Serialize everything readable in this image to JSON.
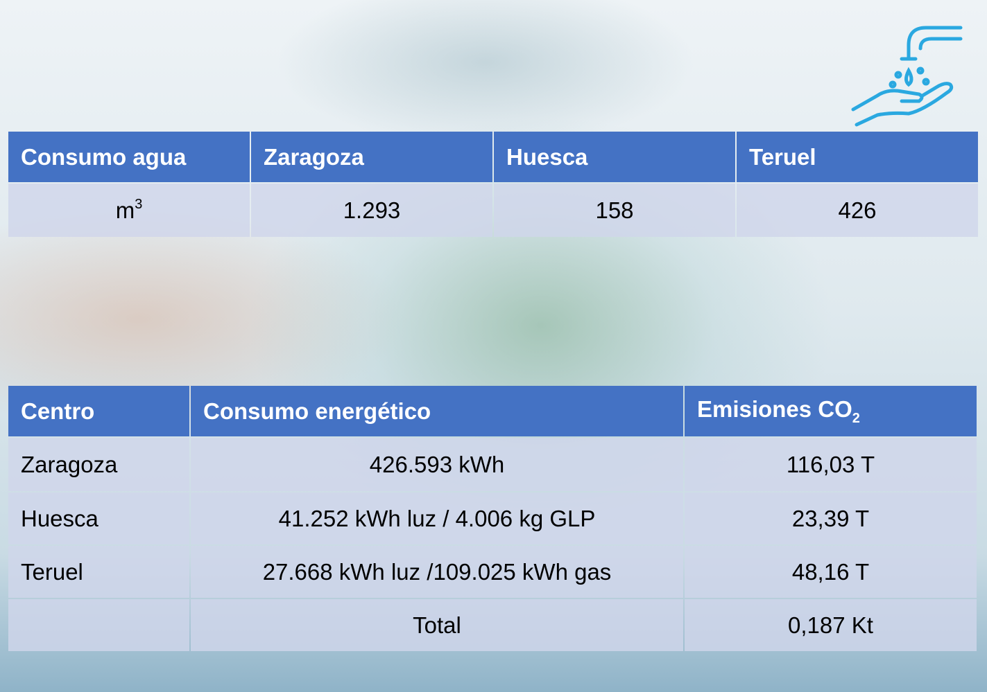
{
  "water_table": {
    "header": [
      "Consumo agua",
      "Zaragoza",
      "Huesca",
      "Teruel"
    ],
    "rows": [
      [
        {
          "text": "m",
          "sup": "3"
        },
        "1.293",
        "158",
        "426"
      ]
    ]
  },
  "energy_table": {
    "header": [
      "Centro",
      "Consumo energético",
      {
        "text": "Emisiones CO",
        "sub": "2"
      }
    ],
    "rows": [
      [
        "Zaragoza",
        "426.593 kWh",
        "116,03 T"
      ],
      [
        "Huesca",
        "41.252 kWh luz /  4.006 kg GLP",
        "23,39 T"
      ],
      [
        "Teruel",
        "27.668 kWh luz /109.025 kWh gas",
        "48,16 T"
      ]
    ],
    "total": {
      "label": "Total",
      "value": "0,187 Kt"
    }
  }
}
